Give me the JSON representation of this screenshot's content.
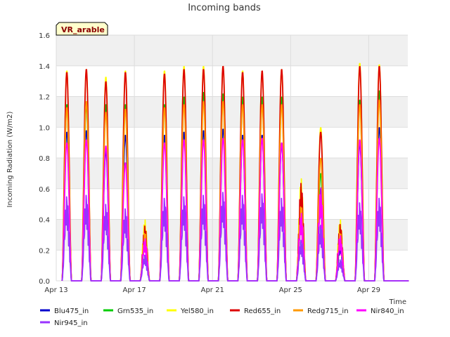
{
  "chart_data": {
    "type": "line",
    "title": "Incoming bands",
    "ylabel": "Incoming Radiation (W/m2)",
    "xlabel": "Time",
    "site_label": "VR_arable",
    "ylim": [
      0,
      1.6
    ],
    "xlim": [
      "2024-04-13",
      "2024-05-01"
    ],
    "yticks": [
      "0.0",
      "0.2",
      "0.4",
      "0.6",
      "0.8",
      "1.0",
      "1.2",
      "1.4",
      "1.6"
    ],
    "xticks": [
      "Apr 13",
      "Apr 17",
      "Apr 21",
      "Apr 25",
      "Apr 29"
    ],
    "grid": true,
    "legend_position": "bottom",
    "days": [
      "2024-04-13",
      "2024-04-14",
      "2024-04-15",
      "2024-04-16",
      "2024-04-17",
      "2024-04-18",
      "2024-04-19",
      "2024-04-20",
      "2024-04-21",
      "2024-04-22",
      "2024-04-23",
      "2024-04-24",
      "2024-04-25",
      "2024-04-26",
      "2024-04-27",
      "2024-04-28",
      "2024-04-29",
      "2024-04-30"
    ],
    "series": [
      {
        "name": "Blu475_in",
        "color": "#0000cc",
        "daily_peak": [
          0.97,
          0.98,
          0.85,
          0.95,
          0.3,
          0.95,
          0.97,
          0.98,
          0.99,
          0.95,
          0.95,
          0.9,
          0.45,
          0.6,
          0.25,
          0.9,
          1.0,
          0.0
        ]
      },
      {
        "name": "Grn535_in",
        "color": "#00cc00",
        "daily_peak": [
          1.15,
          1.15,
          1.15,
          1.15,
          0.33,
          1.15,
          1.2,
          1.23,
          1.22,
          1.2,
          1.2,
          1.2,
          0.5,
          0.7,
          0.3,
          1.18,
          1.24,
          0.0
        ]
      },
      {
        "name": "Yel580_in",
        "color": "#ffff00",
        "daily_peak": [
          1.37,
          1.38,
          1.33,
          1.37,
          0.4,
          1.37,
          1.4,
          1.4,
          1.4,
          1.37,
          1.37,
          1.38,
          0.67,
          1.0,
          0.4,
          1.42,
          1.41,
          0.0
        ]
      },
      {
        "name": "Red655_in",
        "color": "#dd0000",
        "daily_peak": [
          1.36,
          1.38,
          1.3,
          1.36,
          0.36,
          1.35,
          1.38,
          1.38,
          1.4,
          1.36,
          1.37,
          1.38,
          0.64,
          0.97,
          0.37,
          1.4,
          1.4,
          0.0
        ]
      },
      {
        "name": "Redg715_in",
        "color": "#ff9900",
        "daily_peak": [
          1.13,
          1.17,
          1.1,
          1.12,
          0.32,
          1.13,
          1.15,
          1.17,
          1.17,
          1.15,
          1.15,
          1.15,
          0.5,
          0.8,
          0.32,
          1.15,
          1.18,
          0.0
        ]
      },
      {
        "name": "Nir840_in",
        "color": "#ff00ff",
        "daily_peak": [
          0.9,
          0.92,
          0.88,
          0.77,
          0.28,
          0.9,
          0.92,
          0.92,
          0.93,
          0.92,
          0.93,
          0.9,
          0.45,
          0.62,
          0.3,
          0.92,
          0.93,
          0.0
        ]
      },
      {
        "name": "Nir945_in",
        "color": "#9933ff",
        "daily_peak": [
          0.56,
          0.57,
          0.51,
          0.48,
          0.17,
          0.55,
          0.56,
          0.57,
          0.59,
          0.57,
          0.58,
          0.55,
          0.27,
          0.37,
          0.14,
          0.52,
          0.55,
          0.0
        ]
      }
    ]
  },
  "colors": {
    "plot_background": "#ffffff",
    "band_background": "#f0f0f0",
    "grid": "#dddddd",
    "site_label_bg": "#ffffcc"
  }
}
